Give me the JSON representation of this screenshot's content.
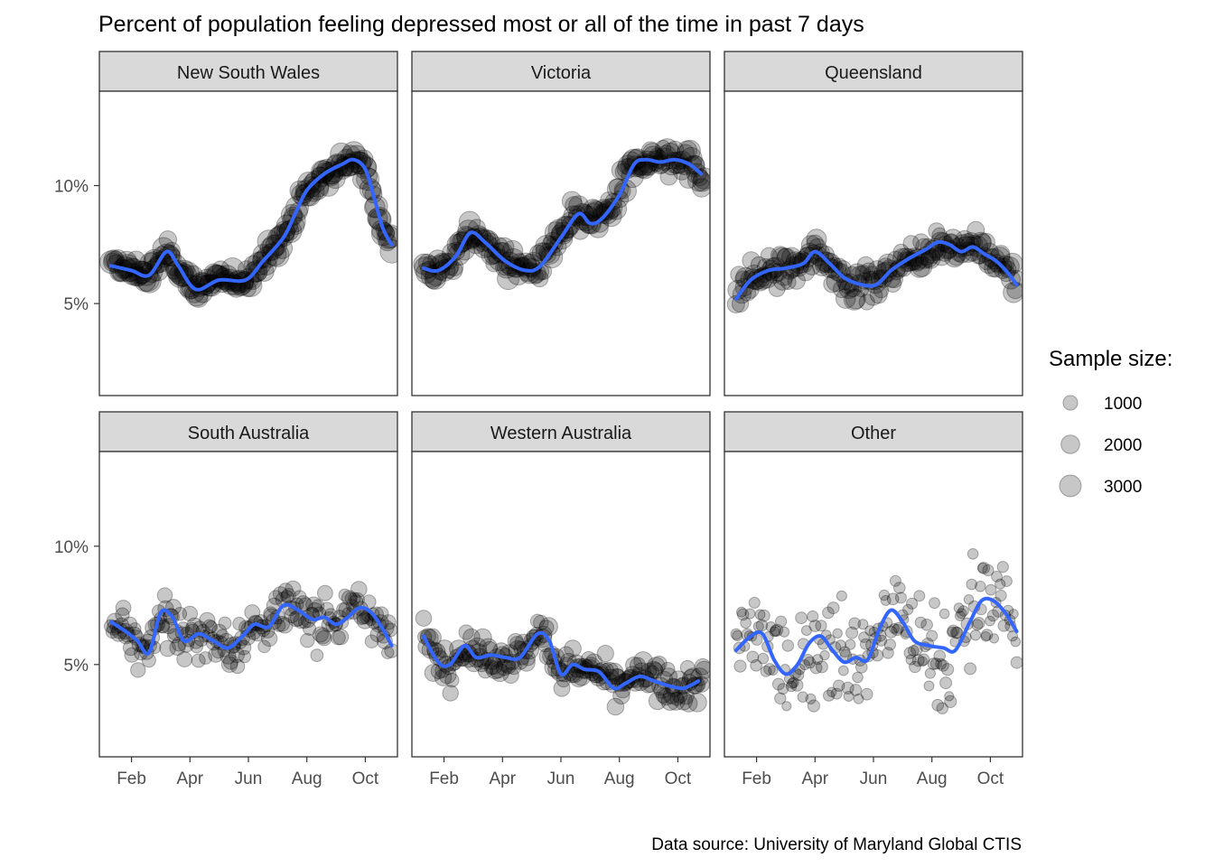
{
  "chart_data": {
    "type": "scatter",
    "title": "Percent of population feeling depressed most or all of the time in past 7 days",
    "caption": "Data source: University of Maryland Global CTIS",
    "xlabel": "",
    "ylabel": "",
    "x_ticks": [
      "Feb",
      "Apr",
      "Jun",
      "Aug",
      "Oct"
    ],
    "x_tick_months": [
      2.0,
      4.0,
      6.0,
      8.0,
      10.0
    ],
    "xlim_months": [
      0.9,
      11.1
    ],
    "y_ticks": [
      "5%",
      "10%"
    ],
    "y_tick_values": [
      5,
      10
    ],
    "ylim": [
      1.1,
      14.0
    ],
    "legend": {
      "title": "Sample size:",
      "entries": [
        {
          "label": "1000",
          "value": 1000
        },
        {
          "label": "2000",
          "value": 2000
        },
        {
          "label": "3000",
          "value": 3000
        }
      ],
      "placement": "right"
    },
    "colors": {
      "smooth": "#3366ff",
      "points": "#000000",
      "strip": "#d9d9d9",
      "panel_border": "#333333"
    },
    "panels": [
      {
        "name": "New South Wales",
        "sample_size": 2500,
        "scatter": 0.35,
        "smooth": [
          [
            1.3,
            6.6
          ],
          [
            2.0,
            6.4
          ],
          [
            2.6,
            6.2
          ],
          [
            3.2,
            7.2
          ],
          [
            3.6,
            6.6
          ],
          [
            4.2,
            5.6
          ],
          [
            5.0,
            6.0
          ],
          [
            5.9,
            6.0
          ],
          [
            6.5,
            6.8
          ],
          [
            7.2,
            7.8
          ],
          [
            7.6,
            8.8
          ],
          [
            8.0,
            9.8
          ],
          [
            8.6,
            10.5
          ],
          [
            9.2,
            10.9
          ],
          [
            9.6,
            11.1
          ],
          [
            10.0,
            10.7
          ],
          [
            10.3,
            9.5
          ],
          [
            10.6,
            8.2
          ],
          [
            10.9,
            7.5
          ]
        ]
      },
      {
        "name": "Victoria",
        "sample_size": 2200,
        "scatter": 0.45,
        "smooth": [
          [
            1.3,
            6.5
          ],
          [
            1.8,
            6.4
          ],
          [
            2.4,
            7.0
          ],
          [
            2.9,
            8.0
          ],
          [
            3.4,
            7.6
          ],
          [
            4.1,
            6.8
          ],
          [
            4.8,
            6.4
          ],
          [
            5.3,
            6.6
          ],
          [
            6.0,
            7.8
          ],
          [
            6.6,
            8.8
          ],
          [
            7.0,
            8.4
          ],
          [
            7.4,
            8.6
          ],
          [
            8.0,
            9.6
          ],
          [
            8.5,
            10.9
          ],
          [
            8.9,
            11.1
          ],
          [
            9.4,
            11.0
          ],
          [
            9.9,
            11.1
          ],
          [
            10.4,
            10.9
          ],
          [
            10.8,
            10.5
          ]
        ]
      },
      {
        "name": "Queensland",
        "sample_size": 1800,
        "scatter": 0.5,
        "smooth": [
          [
            1.3,
            5.2
          ],
          [
            1.8,
            6.0
          ],
          [
            2.4,
            6.4
          ],
          [
            3.0,
            6.5
          ],
          [
            3.6,
            6.7
          ],
          [
            4.0,
            7.2
          ],
          [
            4.5,
            6.7
          ],
          [
            5.0,
            6.1
          ],
          [
            5.6,
            5.8
          ],
          [
            6.1,
            5.8
          ],
          [
            6.6,
            6.4
          ],
          [
            7.2,
            6.9
          ],
          [
            7.8,
            7.3
          ],
          [
            8.2,
            7.6
          ],
          [
            8.6,
            7.5
          ],
          [
            9.0,
            7.2
          ],
          [
            9.4,
            7.4
          ],
          [
            9.8,
            7.1
          ],
          [
            10.2,
            6.8
          ],
          [
            10.6,
            6.3
          ],
          [
            10.9,
            5.8
          ]
        ]
      },
      {
        "name": "South Australia",
        "sample_size": 900,
        "scatter": 0.7,
        "smooth": [
          [
            1.3,
            6.8
          ],
          [
            1.8,
            6.4
          ],
          [
            2.2,
            6.0
          ],
          [
            2.6,
            5.5
          ],
          [
            3.0,
            7.2
          ],
          [
            3.4,
            7.0
          ],
          [
            3.8,
            6.0
          ],
          [
            4.3,
            6.3
          ],
          [
            4.8,
            6.0
          ],
          [
            5.3,
            5.7
          ],
          [
            5.8,
            6.2
          ],
          [
            6.2,
            6.7
          ],
          [
            6.7,
            6.6
          ],
          [
            7.2,
            7.5
          ],
          [
            7.7,
            7.3
          ],
          [
            8.2,
            6.9
          ],
          [
            8.6,
            7.0
          ],
          [
            9.0,
            6.7
          ],
          [
            9.4,
            7.0
          ],
          [
            9.8,
            7.4
          ],
          [
            10.2,
            7.2
          ],
          [
            10.6,
            6.5
          ],
          [
            10.9,
            5.8
          ]
        ]
      },
      {
        "name": "Western Australia",
        "sample_size": 1400,
        "scatter": 0.55,
        "smooth": [
          [
            1.3,
            6.2
          ],
          [
            1.8,
            5.1
          ],
          [
            2.2,
            5.0
          ],
          [
            2.7,
            5.8
          ],
          [
            3.1,
            5.3
          ],
          [
            3.6,
            5.4
          ],
          [
            4.1,
            5.3
          ],
          [
            4.6,
            5.3
          ],
          [
            5.2,
            6.3
          ],
          [
            5.6,
            6.0
          ],
          [
            6.0,
            4.6
          ],
          [
            6.4,
            5.0
          ],
          [
            6.8,
            4.8
          ],
          [
            7.3,
            4.7
          ],
          [
            7.8,
            4.0
          ],
          [
            8.2,
            4.2
          ],
          [
            8.7,
            4.5
          ],
          [
            9.2,
            4.3
          ],
          [
            9.7,
            4.1
          ],
          [
            10.2,
            4.0
          ],
          [
            10.7,
            4.3
          ]
        ]
      },
      {
        "name": "Other",
        "sample_size": 350,
        "scatter": 1.6,
        "smooth": [
          [
            1.3,
            5.6
          ],
          [
            1.8,
            6.2
          ],
          [
            2.2,
            6.3
          ],
          [
            2.6,
            5.2
          ],
          [
            3.0,
            4.6
          ],
          [
            3.4,
            5.0
          ],
          [
            3.8,
            5.9
          ],
          [
            4.2,
            6.2
          ],
          [
            4.6,
            5.6
          ],
          [
            5.0,
            5.1
          ],
          [
            5.4,
            5.3
          ],
          [
            5.8,
            5.2
          ],
          [
            6.2,
            6.5
          ],
          [
            6.6,
            7.3
          ],
          [
            7.0,
            6.8
          ],
          [
            7.4,
            6.0
          ],
          [
            7.9,
            5.8
          ],
          [
            8.4,
            5.7
          ],
          [
            8.8,
            5.6
          ],
          [
            9.3,
            6.8
          ],
          [
            9.7,
            7.7
          ],
          [
            10.1,
            7.7
          ],
          [
            10.5,
            7.2
          ],
          [
            10.9,
            6.4
          ]
        ]
      }
    ]
  }
}
